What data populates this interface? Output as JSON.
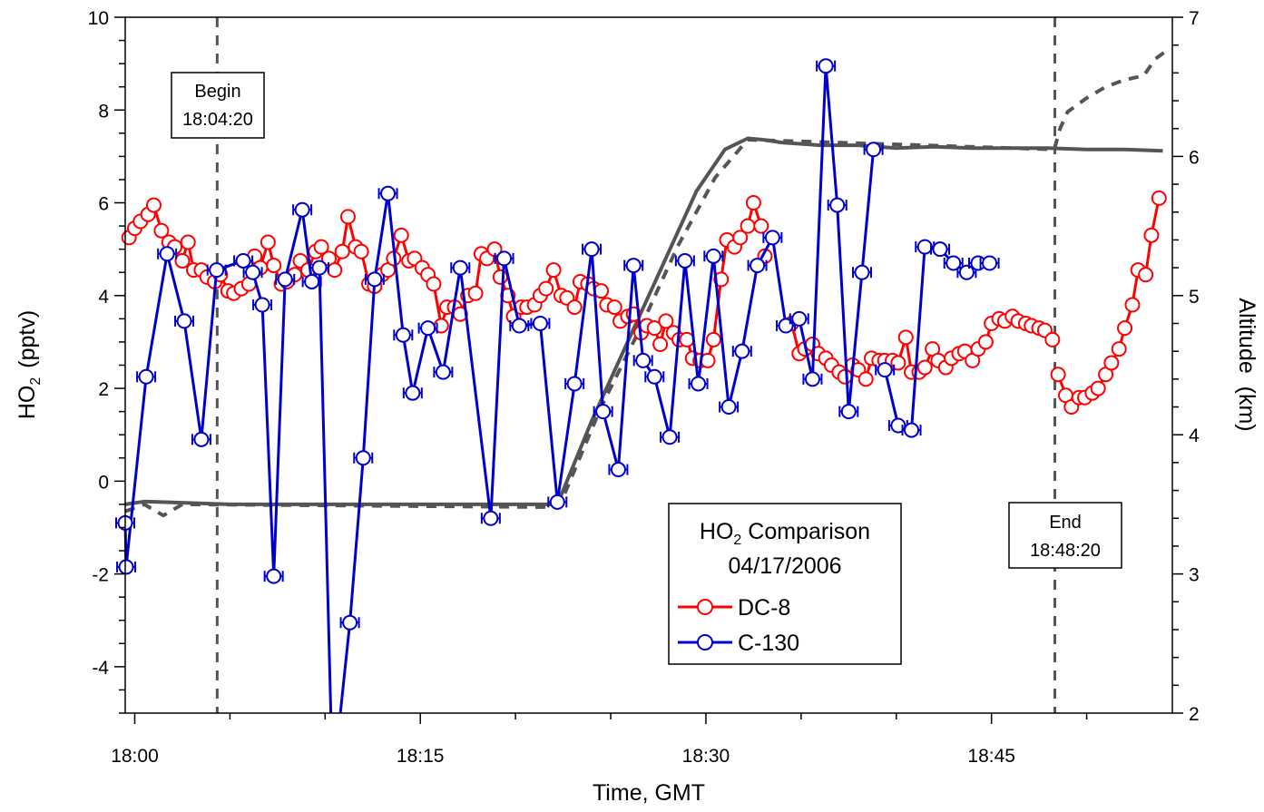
{
  "chart_data": {
    "type": "line",
    "title": "",
    "xlabel": "Time, GMT",
    "ylabel": "HO",
    "ylabel_sub": "2",
    "ylabel_unit": "(pptv)",
    "y2label": "Altitude  (km)",
    "x_unit": "minutes after 18:00 GMT",
    "xlim": [
      -0.5,
      54.5
    ],
    "ylim": [
      -5,
      10
    ],
    "y2lim": [
      2,
      7
    ],
    "x_ticks": [
      {
        "value": 0,
        "label": "18:00"
      },
      {
        "value": 15,
        "label": "18:15"
      },
      {
        "value": 30,
        "label": "18:30"
      },
      {
        "value": 45,
        "label": "18:45"
      }
    ],
    "y_ticks": [
      "-4",
      "-2",
      "0",
      "2",
      "4",
      "6",
      "8",
      "10"
    ],
    "y2_ticks": [
      "2",
      "3",
      "4",
      "5",
      "6",
      "7"
    ],
    "legend": {
      "placement": "bottom-center",
      "title_main": "HO",
      "title_sub": "2",
      "title_rest": " Comparison",
      "date": "04/17/2006",
      "items": [
        "DC-8",
        "C-130"
      ]
    },
    "annotations": [
      {
        "name": "begin",
        "x": 4.33,
        "line1": "Begin",
        "line2": "18:04:20"
      },
      {
        "name": "end",
        "x": 48.33,
        "line1": "End",
        "line2": "18:48:20"
      }
    ],
    "series": [
      {
        "name": "DC-8",
        "color": "#ff0000",
        "axis": "left",
        "marker": "circle",
        "segments": [
          {
            "x": [
              -0.3,
              0.0,
              0.3,
              0.7,
              1.0,
              1.4,
              1.8,
              2.1,
              2.5,
              2.8,
              3.1,
              3.5,
              3.8,
              4.2,
              4.5,
              4.9,
              5.2,
              5.6,
              6.0,
              6.3,
              6.6,
              7.0,
              7.3,
              7.7,
              8.0,
              8.4,
              8.7,
              9.1,
              9.5,
              9.8,
              10.2,
              10.5,
              10.9,
              11.2,
              11.6,
              11.9,
              12.3,
              12.6,
              13.0,
              13.3,
              13.6,
              14.0,
              14.4,
              14.7,
              15.1,
              15.4,
              15.7,
              16.1,
              16.4,
              16.8,
              17.1,
              17.5,
              17.9,
              18.2,
              18.5,
              18.9,
              19.2,
              19.6,
              19.9,
              20.3,
              20.6,
              21.0,
              21.3,
              21.6,
              22.0,
              22.4,
              22.7,
              23.1,
              23.4,
              23.8,
              24.1,
              24.5,
              24.8,
              25.2,
              25.5,
              25.9,
              26.2,
              26.6,
              26.9,
              27.3,
              27.6,
              27.9,
              28.3,
              28.6,
              29.0,
              29.3,
              29.7,
              30.1,
              30.4,
              30.8,
              31.1,
              31.5,
              31.8,
              32.2,
              32.5,
              32.9
            ],
            "y": [
              5.25,
              5.45,
              5.6,
              5.75,
              5.95,
              5.4,
              5.15,
              5.05,
              4.75,
              5.15,
              4.55,
              4.55,
              4.4,
              4.3,
              4.45,
              4.1,
              4.05,
              4.15,
              4.25,
              4.85,
              4.6,
              5.15,
              4.65,
              4.25,
              4.3,
              4.45,
              4.75,
              4.55,
              4.95,
              5.05,
              4.8,
              4.55,
              4.95,
              5.7,
              5.05,
              4.95,
              4.25,
              4.2,
              4.45,
              4.55,
              4.8,
              5.3,
              4.75,
              4.8,
              4.6,
              4.45,
              4.25,
              3.35,
              3.75,
              3.75,
              3.6,
              4.0,
              4.05,
              4.9,
              4.8,
              5.0,
              4.4,
              4.0,
              3.55,
              3.75,
              3.75,
              3.8,
              4.0,
              4.15,
              4.55,
              4.0,
              3.95,
              3.75,
              4.3,
              4.25,
              4.15,
              4.1,
              3.8,
              3.75,
              3.45,
              3.55,
              3.6,
              3.2,
              3.35,
              3.3,
              2.95,
              3.45,
              3.2,
              3.05,
              3.05,
              2.65,
              2.6,
              2.6,
              3.05,
              4.35,
              5.2,
              5.05,
              5.25,
              5.5,
              6.0,
              5.5
            ]
          },
          {
            "x": [
              33.1
            ],
            "y": [
              4.85
            ]
          },
          {
            "x": [
              34.5,
              34.9,
              35.2,
              35.6,
              35.9,
              36.3,
              36.6,
              37.0,
              37.3,
              37.7,
              38.0,
              38.4,
              38.7,
              39.1,
              39.4,
              39.8,
              40.1,
              40.5,
              40.8,
              41.2,
              41.5,
              41.9,
              42.2,
              42.6,
              42.9,
              43.3,
              43.6,
              44.0,
              44.3,
              44.7,
              45.0,
              45.4,
              45.7,
              46.1,
              46.4,
              46.8,
              47.1,
              47.5,
              47.8,
              48.2
            ],
            "y": [
              3.4,
              2.75,
              2.85,
              2.95,
              2.75,
              2.65,
              2.5,
              2.35,
              2.25,
              2.5,
              2.4,
              2.2,
              2.65,
              2.6,
              2.6,
              2.6,
              2.55,
              3.1,
              2.35,
              2.35,
              2.45,
              2.85,
              2.6,
              2.45,
              2.65,
              2.75,
              2.8,
              2.6,
              2.85,
              3.0,
              3.4,
              3.5,
              3.45,
              3.55,
              3.45,
              3.4,
              3.35,
              3.3,
              3.25,
              3.05
            ]
          },
          {
            "x": [
              48.5,
              48.9,
              49.2,
              49.6,
              49.9,
              50.3,
              50.6,
              51.0,
              51.3,
              51.7,
              52.0,
              52.4,
              52.7,
              53.1,
              53.4,
              53.8
            ],
            "y": [
              2.3,
              1.85,
              1.6,
              1.8,
              1.8,
              1.9,
              2.0,
              2.3,
              2.55,
              2.85,
              3.3,
              3.8,
              4.55,
              4.45,
              5.3,
              6.1
            ]
          }
        ]
      },
      {
        "name": "C-130",
        "color": "#0000cc",
        "axis": "left",
        "marker": "circle-errbar",
        "segments": [
          {
            "x": [
              -0.5,
              -0.45,
              0.6,
              1.7,
              2.6,
              3.5,
              4.3,
              5.7,
              6.2,
              6.7,
              7.3,
              7.9,
              8.8,
              9.3,
              9.7,
              10.3
            ],
            "y": [
              -0.9,
              -1.85,
              2.25,
              4.9,
              3.45,
              0.9,
              4.55,
              4.75,
              4.5,
              3.8,
              -2.05,
              4.35,
              5.85,
              4.3,
              4.6,
              -5.0
            ]
          },
          {
            "x": [
              10.8,
              11.3,
              12.0,
              12.6,
              13.3,
              14.1,
              14.6,
              15.4,
              16.2,
              17.1,
              18.7,
              19.4,
              20.2,
              21.3,
              22.2,
              23.1,
              24.0,
              24.6,
              25.4,
              26.2,
              26.7,
              27.3,
              28.1,
              28.9,
              29.6,
              30.4,
              31.2,
              31.9,
              32.7,
              33.5,
              34.2,
              34.9,
              35.6,
              36.3,
              36.9,
              37.5,
              38.2,
              38.8
            ],
            "y": [
              -5.0,
              -3.05,
              0.5,
              4.35,
              6.2,
              3.15,
              1.9,
              3.3,
              2.35,
              4.6,
              -0.8,
              4.8,
              3.35,
              3.4,
              -0.45,
              2.1,
              5.0,
              1.5,
              0.25,
              4.65,
              2.6,
              2.25,
              0.95,
              4.75,
              2.1,
              4.85,
              1.6,
              2.8,
              4.65,
              5.25,
              3.35,
              3.5,
              2.2,
              8.95,
              5.95,
              1.5,
              4.5,
              7.15
            ]
          },
          {
            "x": [
              39.4,
              40.1,
              40.8,
              41.5,
              42.3,
              43.0,
              43.7,
              44.3,
              44.9
            ],
            "y": [
              2.4,
              1.2,
              1.1,
              5.05,
              5.0,
              4.7,
              4.5,
              4.7,
              4.7
            ]
          }
        ]
      },
      {
        "name": "",
        "color": "#555555",
        "axis": "right",
        "style": "solid",
        "x": [
          -0.5,
          0.5,
          5,
          15,
          20,
          22.2,
          24,
          26,
          28,
          29.5,
          31,
          32.2,
          33,
          34,
          36,
          38,
          40,
          42,
          44,
          46,
          48,
          50,
          52,
          54
        ],
        "y": [
          3.5,
          3.52,
          3.5,
          3.5,
          3.5,
          3.5,
          4.1,
          4.7,
          5.3,
          5.75,
          6.05,
          6.13,
          6.12,
          6.1,
          6.08,
          6.08,
          6.06,
          6.07,
          6.06,
          6.06,
          6.06,
          6.05,
          6.05,
          6.04
        ]
      },
      {
        "name": "",
        "color": "#555555",
        "axis": "right",
        "style": "dashed",
        "x": [
          -0.5,
          0.5,
          1.5,
          2.5,
          22.0,
          22.5,
          24.5,
          26.5,
          28.5,
          30.5,
          32.2,
          48.3,
          48.6,
          49.0,
          50.0,
          51.0,
          52.0,
          53.0,
          53.6,
          54.0,
          54.4
        ],
        "y": [
          3.45,
          3.5,
          3.42,
          3.5,
          3.48,
          3.55,
          4.2,
          4.75,
          5.35,
          5.85,
          6.12,
          6.05,
          6.2,
          6.32,
          6.42,
          6.5,
          6.55,
          6.58,
          6.7,
          6.74,
          6.78
        ]
      }
    ]
  }
}
